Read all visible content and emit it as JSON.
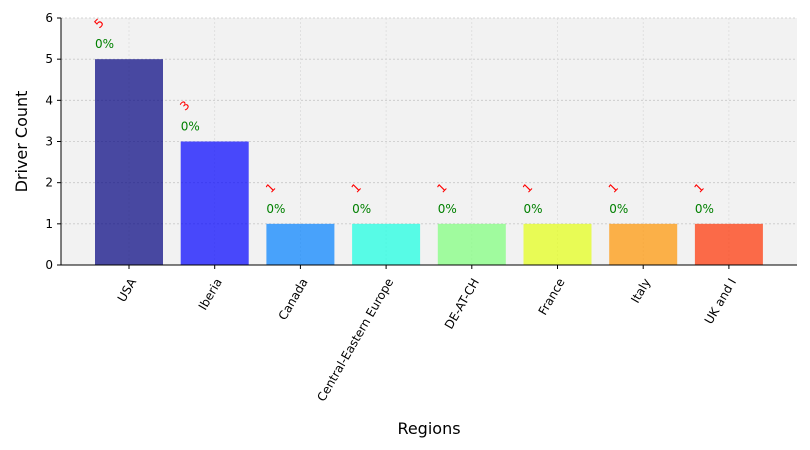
{
  "chart_data": {
    "type": "bar",
    "title": "",
    "xlabel": "Regions",
    "ylabel": "Driver Count",
    "categories": [
      "USA",
      "Iberia",
      "Canada",
      "Central-Eastern Europe",
      "DE-AT-CH",
      "France",
      "Italy",
      "UK and I"
    ],
    "values": [
      5,
      3,
      1,
      1,
      1,
      1,
      1,
      1
    ],
    "count_labels": [
      "5",
      "3",
      "1",
      "1",
      "1",
      "1",
      "1",
      "1"
    ],
    "percent_labels": [
      "0%",
      "0%",
      "0%",
      "0%",
      "0%",
      "0%",
      "0%",
      "0%"
    ],
    "ylim": [
      0,
      6
    ],
    "yticks": [
      0,
      1,
      2,
      3,
      4,
      5,
      6
    ],
    "grid": true,
    "legend": "none",
    "bar_colors": [
      "#00007f",
      "#0000ff",
      "#0080ff",
      "#15ffe1",
      "#7dff7a",
      "#e4ff13",
      "#ff9400",
      "#ff3000"
    ],
    "bar_opacity": 0.7,
    "count_label_color": "#ff0000",
    "percent_label_color": "#008000",
    "plot_background": "#f2f2f2"
  }
}
